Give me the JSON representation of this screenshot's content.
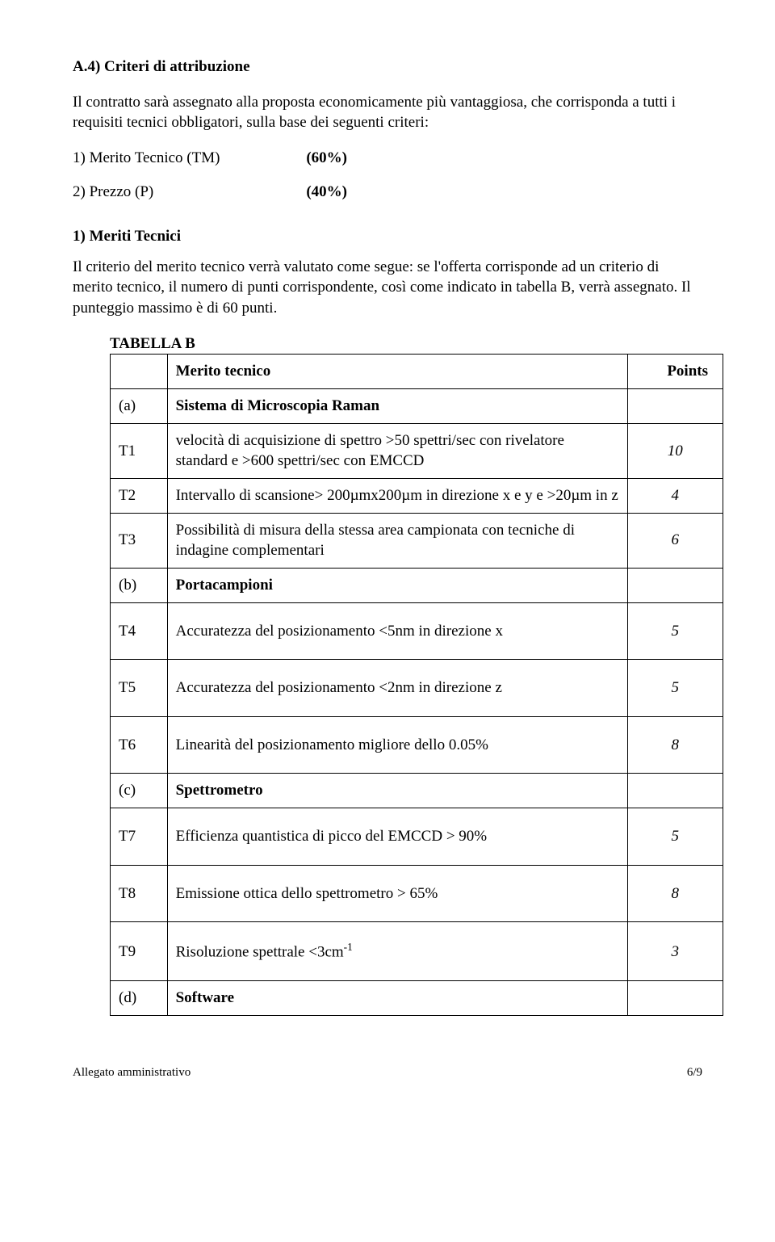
{
  "section_title": "A.4) Criteri di attribuzione",
  "intro": "Il contratto sarà assegnato alla proposta economicamente più vantaggiosa, che corrisponda a tutti i requisiti tecnici obbligatori, sulla base dei seguenti criteri:",
  "crit1_label": "1) Merito Tecnico (TM)",
  "crit1_val": "(60%)",
  "crit2_label": "2) Prezzo (P)",
  "crit2_val": "(40%)",
  "meriti_heading": "1)  Meriti Tecnici",
  "meriti_body": "Il criterio del merito tecnico verrà valutato come segue: se l'offerta corrisponde ad un criterio di merito tecnico, il numero di punti corrispondente, così come indicato in tabella B, verrà assegnato. Il punteggio massimo è di 60 punti.",
  "tabella_label": "TABELLA B",
  "header_col2": "Merito tecnico",
  "header_col3": "Points",
  "rows": {
    "a_id": "(a)",
    "a_desc": "Sistema di Microscopia Raman",
    "t1_id": "T1",
    "t1_desc": "velocità di acquisizione di spettro >50 spettri/sec con rivelatore standard e >600 spettri/sec con EMCCD",
    "t1_pts": "10",
    "t2_id": "T2",
    "t2_desc": "Intervallo di scansione> 200µmx200µm in direzione x e y e >20µm in z",
    "t2_pts": "4",
    "t3_id": "T3",
    "t3_desc": "Possibilità di misura della stessa area campionata con tecniche di indagine complementari",
    "t3_pts": "6",
    "b_id": "(b)",
    "b_desc": "Portacampioni",
    "t4_id": "T4",
    "t4_desc": "Accuratezza del posizionamento <5nm in direzione x",
    "t4_pts": "5",
    "t5_id": "T5",
    "t5_desc": "Accuratezza del posizionamento <2nm in direzione z",
    "t5_pts": "5",
    "t6_id": "T6",
    "t6_desc": "Linearità del posizionamento migliore dello 0.05%",
    "t6_pts": "8",
    "c_id": "(c)",
    "c_desc": "Spettrometro",
    "t7_id": "T7",
    "t7_desc": "Efficienza quantistica di picco del EMCCD > 90%",
    "t7_pts": "5",
    "t8_id": "T8",
    "t8_desc": "Emissione ottica dello spettrometro > 65%",
    "t8_pts": "8",
    "t9_id": "T9",
    "t9_pts": "3",
    "d_id": "(d)",
    "d_desc": "Software"
  },
  "t9_desc_html": "Risoluzione spettrale <3cm<sup>-1</sup>",
  "footer_left": "Allegato amministrativo",
  "footer_right": "6/9"
}
